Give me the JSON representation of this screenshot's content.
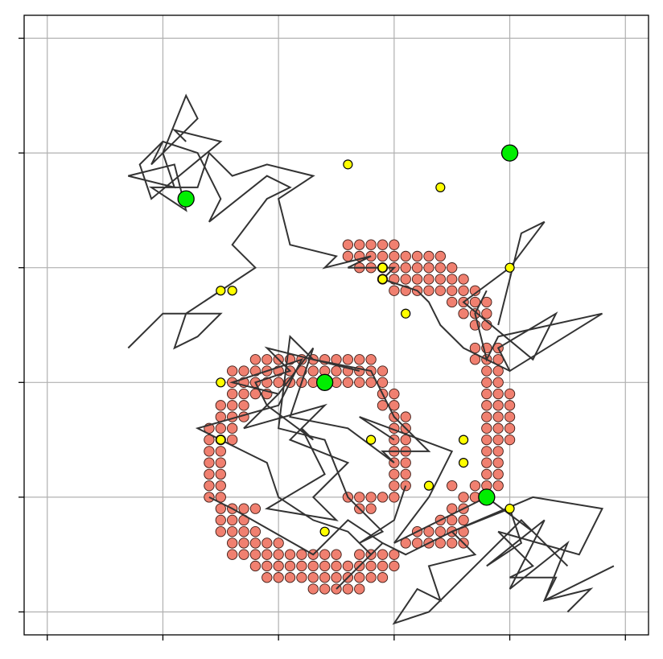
{
  "chart_data": {
    "type": "scatter",
    "title": "",
    "xlabel": "",
    "ylabel": "",
    "xlim": [
      -0.2,
      5.2
    ],
    "ylim": [
      -0.2,
      5.2
    ],
    "x_ticks": [
      0,
      1,
      2,
      3,
      4,
      5
    ],
    "y_ticks": [
      0,
      1,
      2,
      3,
      4,
      5
    ],
    "tick_labels_shown": false,
    "grid": true,
    "legend": "none",
    "colors": {
      "grid": "#b0b0b0",
      "obstacle_fill": "#f08070",
      "obstacle_edge": "#3a1a14",
      "path": "#333333",
      "node_fill": "#ffff00",
      "node_edge": "#000000",
      "goal_fill": "#00ee00",
      "goal_edge": "#000000"
    },
    "obstacles": {
      "name": "",
      "points": [
        [
          2.6,
          3.2
        ],
        [
          2.7,
          3.2
        ],
        [
          2.8,
          3.2
        ],
        [
          2.9,
          3.2
        ],
        [
          3.0,
          3.2
        ],
        [
          2.6,
          3.1
        ],
        [
          2.7,
          3.1
        ],
        [
          2.8,
          3.1
        ],
        [
          2.9,
          3.1
        ],
        [
          3.0,
          3.1
        ],
        [
          3.1,
          3.1
        ],
        [
          3.2,
          3.1
        ],
        [
          3.3,
          3.1
        ],
        [
          3.4,
          3.1
        ],
        [
          2.7,
          3.0
        ],
        [
          2.8,
          3.0
        ],
        [
          2.9,
          3.0
        ],
        [
          3.0,
          3.0
        ],
        [
          3.1,
          3.0
        ],
        [
          3.2,
          3.0
        ],
        [
          3.3,
          3.0
        ],
        [
          3.4,
          3.0
        ],
        [
          3.5,
          3.0
        ],
        [
          2.9,
          2.9
        ],
        [
          3.0,
          2.9
        ],
        [
          3.1,
          2.9
        ],
        [
          3.2,
          2.9
        ],
        [
          3.3,
          2.9
        ],
        [
          3.4,
          2.9
        ],
        [
          3.5,
          2.9
        ],
        [
          3.6,
          2.9
        ],
        [
          3.0,
          2.8
        ],
        [
          3.1,
          2.8
        ],
        [
          3.2,
          2.8
        ],
        [
          3.3,
          2.8
        ],
        [
          3.4,
          2.8
        ],
        [
          3.5,
          2.8
        ],
        [
          3.6,
          2.8
        ],
        [
          3.7,
          2.8
        ],
        [
          3.5,
          2.7
        ],
        [
          3.6,
          2.7
        ],
        [
          3.7,
          2.7
        ],
        [
          3.8,
          2.7
        ],
        [
          3.6,
          2.6
        ],
        [
          3.7,
          2.6
        ],
        [
          3.8,
          2.6
        ],
        [
          3.7,
          2.5
        ],
        [
          3.8,
          2.5
        ],
        [
          1.8,
          2.2
        ],
        [
          1.9,
          2.2
        ],
        [
          2.0,
          2.2
        ],
        [
          2.1,
          2.2
        ],
        [
          2.2,
          2.2
        ],
        [
          2.3,
          2.2
        ],
        [
          2.4,
          2.2
        ],
        [
          2.5,
          2.2
        ],
        [
          2.6,
          2.2
        ],
        [
          2.7,
          2.2
        ],
        [
          2.8,
          2.2
        ],
        [
          1.6,
          2.1
        ],
        [
          1.7,
          2.1
        ],
        [
          1.8,
          2.1
        ],
        [
          1.9,
          2.1
        ],
        [
          2.0,
          2.1
        ],
        [
          2.1,
          2.1
        ],
        [
          2.2,
          2.1
        ],
        [
          2.3,
          2.1
        ],
        [
          2.4,
          2.1
        ],
        [
          2.5,
          2.1
        ],
        [
          2.6,
          2.1
        ],
        [
          2.7,
          2.1
        ],
        [
          2.8,
          2.1
        ],
        [
          2.9,
          2.1
        ],
        [
          1.6,
          2.0
        ],
        [
          1.7,
          2.0
        ],
        [
          1.8,
          2.0
        ],
        [
          1.9,
          2.0
        ],
        [
          2.0,
          2.0
        ],
        [
          2.1,
          2.0
        ],
        [
          2.2,
          2.0
        ],
        [
          2.3,
          2.0
        ],
        [
          2.4,
          2.0
        ],
        [
          2.5,
          2.0
        ],
        [
          2.6,
          2.0
        ],
        [
          2.7,
          2.0
        ],
        [
          2.8,
          2.0
        ],
        [
          2.9,
          2.0
        ],
        [
          1.6,
          1.9
        ],
        [
          1.7,
          1.9
        ],
        [
          1.8,
          1.9
        ],
        [
          1.9,
          1.9
        ],
        [
          2.9,
          1.9
        ],
        [
          3.0,
          1.9
        ],
        [
          1.5,
          1.8
        ],
        [
          1.6,
          1.8
        ],
        [
          1.7,
          1.8
        ],
        [
          2.9,
          1.8
        ],
        [
          3.0,
          1.8
        ],
        [
          1.5,
          1.7
        ],
        [
          1.6,
          1.7
        ],
        [
          1.7,
          1.7
        ],
        [
          3.0,
          1.7
        ],
        [
          3.1,
          1.7
        ],
        [
          1.4,
          1.6
        ],
        [
          1.5,
          1.6
        ],
        [
          1.6,
          1.6
        ],
        [
          3.0,
          1.6
        ],
        [
          3.1,
          1.6
        ],
        [
          1.4,
          1.5
        ],
        [
          1.5,
          1.5
        ],
        [
          1.6,
          1.5
        ],
        [
          3.0,
          1.5
        ],
        [
          3.1,
          1.5
        ],
        [
          1.4,
          1.4
        ],
        [
          1.5,
          1.4
        ],
        [
          3.0,
          1.4
        ],
        [
          3.1,
          1.4
        ],
        [
          1.4,
          1.3
        ],
        [
          1.5,
          1.3
        ],
        [
          3.0,
          1.3
        ],
        [
          3.1,
          1.3
        ],
        [
          1.4,
          1.2
        ],
        [
          1.5,
          1.2
        ],
        [
          3.0,
          1.2
        ],
        [
          3.1,
          1.2
        ],
        [
          1.4,
          1.1
        ],
        [
          1.5,
          1.1
        ],
        [
          3.0,
          1.1
        ],
        [
          3.1,
          1.1
        ],
        [
          1.4,
          1.0
        ],
        [
          1.5,
          1.0
        ],
        [
          2.6,
          1.0
        ],
        [
          2.7,
          1.0
        ],
        [
          2.8,
          1.0
        ],
        [
          2.9,
          1.0
        ],
        [
          3.0,
          1.0
        ],
        [
          1.5,
          0.9
        ],
        [
          1.6,
          0.9
        ],
        [
          1.7,
          0.9
        ],
        [
          1.8,
          0.9
        ],
        [
          2.7,
          0.9
        ],
        [
          2.8,
          0.9
        ],
        [
          1.5,
          0.8
        ],
        [
          1.6,
          0.8
        ],
        [
          1.7,
          0.8
        ],
        [
          1.5,
          0.7
        ],
        [
          1.6,
          0.7
        ],
        [
          1.7,
          0.7
        ],
        [
          1.8,
          0.7
        ],
        [
          1.6,
          0.6
        ],
        [
          1.7,
          0.6
        ],
        [
          1.8,
          0.6
        ],
        [
          1.9,
          0.6
        ],
        [
          2.0,
          0.6
        ],
        [
          1.6,
          0.5
        ],
        [
          1.7,
          0.5
        ],
        [
          1.8,
          0.5
        ],
        [
          1.9,
          0.5
        ],
        [
          2.0,
          0.5
        ],
        [
          2.1,
          0.5
        ],
        [
          2.2,
          0.5
        ],
        [
          2.3,
          0.5
        ],
        [
          2.4,
          0.5
        ],
        [
          2.5,
          0.5
        ],
        [
          2.7,
          0.5
        ],
        [
          2.8,
          0.5
        ],
        [
          2.9,
          0.5
        ],
        [
          3.0,
          0.5
        ],
        [
          1.8,
          0.4
        ],
        [
          1.9,
          0.4
        ],
        [
          2.0,
          0.4
        ],
        [
          2.1,
          0.4
        ],
        [
          2.2,
          0.4
        ],
        [
          2.3,
          0.4
        ],
        [
          2.4,
          0.4
        ],
        [
          2.5,
          0.4
        ],
        [
          2.6,
          0.4
        ],
        [
          2.7,
          0.4
        ],
        [
          2.8,
          0.4
        ],
        [
          2.9,
          0.4
        ],
        [
          3.0,
          0.4
        ],
        [
          1.9,
          0.3
        ],
        [
          2.0,
          0.3
        ],
        [
          2.1,
          0.3
        ],
        [
          2.2,
          0.3
        ],
        [
          2.3,
          0.3
        ],
        [
          2.4,
          0.3
        ],
        [
          2.5,
          0.3
        ],
        [
          2.6,
          0.3
        ],
        [
          2.7,
          0.3
        ],
        [
          2.8,
          0.3
        ],
        [
          2.9,
          0.3
        ],
        [
          2.3,
          0.2
        ],
        [
          2.4,
          0.2
        ],
        [
          2.5,
          0.2
        ],
        [
          2.6,
          0.2
        ],
        [
          2.7,
          0.2
        ],
        [
          3.1,
          0.6
        ],
        [
          3.2,
          0.6
        ],
        [
          3.3,
          0.6
        ],
        [
          3.4,
          0.6
        ],
        [
          3.5,
          0.6
        ],
        [
          3.6,
          0.6
        ],
        [
          3.2,
          0.7
        ],
        [
          3.3,
          0.7
        ],
        [
          3.4,
          0.7
        ],
        [
          3.5,
          0.7
        ],
        [
          3.6,
          0.7
        ],
        [
          3.4,
          0.8
        ],
        [
          3.5,
          0.8
        ],
        [
          3.6,
          0.8
        ],
        [
          3.5,
          0.9
        ],
        [
          3.6,
          0.9
        ],
        [
          3.6,
          1.0
        ],
        [
          3.7,
          1.0
        ],
        [
          3.5,
          1.1
        ],
        [
          3.7,
          2.3
        ],
        [
          3.8,
          2.3
        ],
        [
          3.9,
          2.3
        ],
        [
          3.7,
          2.2
        ],
        [
          3.8,
          2.2
        ],
        [
          3.9,
          2.2
        ],
        [
          3.8,
          2.1
        ],
        [
          3.9,
          2.1
        ],
        [
          3.8,
          2.0
        ],
        [
          3.9,
          2.0
        ],
        [
          3.8,
          1.9
        ],
        [
          3.9,
          1.9
        ],
        [
          4.0,
          1.9
        ],
        [
          3.8,
          1.8
        ],
        [
          3.9,
          1.8
        ],
        [
          4.0,
          1.8
        ],
        [
          3.8,
          1.7
        ],
        [
          3.9,
          1.7
        ],
        [
          4.0,
          1.7
        ],
        [
          3.8,
          1.6
        ],
        [
          3.9,
          1.6
        ],
        [
          4.0,
          1.6
        ],
        [
          3.8,
          1.5
        ],
        [
          3.9,
          1.5
        ],
        [
          4.0,
          1.5
        ],
        [
          3.8,
          1.4
        ],
        [
          3.9,
          1.4
        ],
        [
          3.8,
          1.3
        ],
        [
          3.9,
          1.3
        ],
        [
          3.8,
          1.2
        ],
        [
          3.9,
          1.2
        ],
        [
          3.7,
          1.1
        ],
        [
          3.8,
          1.1
        ],
        [
          3.9,
          1.1
        ]
      ]
    },
    "path_series": [
      {
        "name": "",
        "x": [
          1.2,
          1.1,
          1.5,
          0.9,
          0.8,
          1.0,
          1.3,
          1.5,
          1.4,
          1.9,
          2.1,
          1.9,
          1.6,
          1.8,
          1.2,
          1.1,
          1.3,
          1.5,
          1.0,
          0.7
        ],
        "y": [
          4.1,
          4.2,
          4.1,
          3.6,
          3.9,
          4.1,
          4.0,
          3.6,
          3.4,
          3.8,
          3.7,
          3.6,
          3.2,
          3.0,
          2.6,
          2.3,
          2.4,
          2.6,
          2.6,
          2.3
        ]
      },
      {
        "name": "",
        "x": [
          1.0,
          0.9,
          1.3,
          1.2,
          1.0,
          1.1,
          0.7,
          1.1,
          1.2,
          0.9,
          1.3,
          1.4,
          1.6,
          1.9,
          2.3,
          2.0,
          2.1,
          2.5,
          2.4,
          2.8,
          2.6,
          3.0,
          2.9,
          3.2,
          3.3,
          3.4,
          3.6,
          4.0
        ],
        "y": [
          4.1,
          3.9,
          4.3,
          4.5,
          4.0,
          3.7,
          3.8,
          3.9,
          3.5,
          3.7,
          3.7,
          4.0,
          3.8,
          3.9,
          3.8,
          3.6,
          3.2,
          3.1,
          3.0,
          3.1,
          3.0,
          3.0,
          2.9,
          2.8,
          2.7,
          2.5,
          2.3,
          2.1
        ]
      },
      {
        "name": "",
        "x": [
          2.0,
          2.3,
          2.1,
          2.6,
          3.0,
          2.9,
          3.3,
          3.0,
          2.8,
          2.3,
          2.1,
          2.0,
          2.4,
          2.6,
          2.8,
          2.9,
          2.7,
          3.0,
          3.1
        ],
        "y": [
          1.9,
          2.3,
          1.7,
          1.6,
          1.3,
          1.4,
          1.4,
          1.7,
          2.1,
          2.2,
          2.4,
          1.6,
          1.5,
          1.0,
          0.8,
          0.7,
          0.6,
          0.8,
          1.1
        ]
      },
      {
        "name": "",
        "x": [
          1.4,
          1.6,
          2.3,
          2.6,
          2.9,
          3.1,
          3.5,
          4.2,
          4.8,
          4.6,
          3.9,
          4.2,
          4.0,
          4.4,
          4.3,
          4.7,
          4.5
        ],
        "y": [
          1.0,
          0.9,
          0.5,
          0.8,
          0.6,
          0.5,
          0.7,
          1.0,
          0.9,
          0.5,
          0.7,
          0.4,
          0.3,
          0.3,
          0.1,
          0.2,
          0.0
        ]
      },
      {
        "name": "",
        "x": [
          3.9,
          4.1,
          4.3,
          4.0,
          3.6,
          4.2,
          4.4,
          3.9,
          4.0,
          4.8,
          3.9,
          3.8,
          3.7,
          3.8
        ],
        "y": [
          2.5,
          3.3,
          3.4,
          3.0,
          2.7,
          2.2,
          2.6,
          2.3,
          2.1,
          2.6,
          2.4,
          2.2,
          2.6,
          2.8
        ]
      },
      {
        "name": "",
        "x": [
          3.0,
          2.7,
          3.5,
          3.3,
          3.0,
          3.8,
          4.2,
          4.5,
          4.1,
          3.6,
          3.3,
          3.0,
          3.2,
          3.4,
          3.3,
          3.7,
          3.5,
          4.0,
          4.1,
          3.8,
          4.3,
          4.0,
          4.5,
          4.3,
          4.9
        ],
        "y": [
          1.5,
          1.7,
          1.4,
          1.0,
          0.6,
          1.0,
          0.7,
          0.4,
          0.8,
          0.3,
          0.0,
          -0.1,
          0.2,
          0.1,
          0.4,
          0.5,
          0.7,
          0.9,
          0.6,
          0.4,
          0.8,
          0.2,
          0.6,
          0.1,
          0.4
        ]
      },
      {
        "name": "",
        "x": [
          2.7,
          2.3,
          1.9,
          2.1,
          1.8,
          1.9,
          2.3,
          2.2,
          2.4,
          1.9,
          2.5,
          2.3,
          2.6,
          2.1,
          2.4,
          1.7,
          2.0,
          1.6,
          2.2,
          2.0,
          1.3,
          1.7,
          1.9,
          2.0,
          2.3,
          2.6,
          2.8,
          2.9,
          2.7,
          2.5
        ],
        "y": [
          2.1,
          2.2,
          2.3,
          2.1,
          2.0,
          1.8,
          1.5,
          1.6,
          1.2,
          0.9,
          0.8,
          1.0,
          1.3,
          1.5,
          1.8,
          1.6,
          1.9,
          2.0,
          2.2,
          1.8,
          1.6,
          1.4,
          1.3,
          1.0,
          0.8,
          0.7,
          0.5,
          0.6,
          0.4,
          0.2
        ]
      }
    ],
    "nodes": {
      "name": "",
      "points": [
        [
          2.6,
          3.9
        ],
        [
          3.4,
          3.7
        ],
        [
          2.9,
          3.0
        ],
        [
          2.9,
          2.9
        ],
        [
          3.1,
          2.6
        ],
        [
          4.0,
          3.0
        ],
        [
          1.5,
          2.8
        ],
        [
          1.6,
          2.8
        ],
        [
          1.5,
          2.0
        ],
        [
          1.5,
          1.5
        ],
        [
          2.8,
          1.5
        ],
        [
          3.6,
          1.5
        ],
        [
          3.6,
          1.3
        ],
        [
          3.3,
          1.1
        ],
        [
          4.0,
          0.9
        ],
        [
          2.4,
          0.7
        ]
      ]
    },
    "goals": {
      "name": "",
      "points": [
        [
          1.2,
          3.6
        ],
        [
          4.0,
          4.0
        ],
        [
          2.4,
          2.0
        ],
        [
          3.8,
          1.0
        ]
      ]
    }
  }
}
